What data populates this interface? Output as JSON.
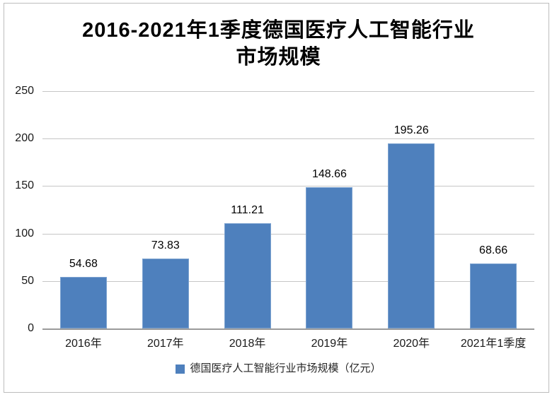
{
  "chart_data": {
    "type": "bar",
    "title": "2016-2021年1季度德国医疗人工智能行业市场规模",
    "title_lines": [
      "2016-2021年1季度德国医疗人工智能行业",
      "市场规模"
    ],
    "categories": [
      "2016年",
      "2017年",
      "2018年",
      "2019年",
      "2020年",
      "2021年1季度"
    ],
    "values": [
      54.68,
      73.83,
      111.21,
      148.66,
      195.26,
      68.66
    ],
    "value_labels": [
      "54.68",
      "73.83",
      "111.21",
      "148.66",
      "195.26",
      "68.66"
    ],
    "series_name": "德国医疗人工智能行业市场规模（亿元）",
    "y_ticks": [
      0,
      50,
      100,
      150,
      200,
      250
    ],
    "ylim": [
      0,
      250
    ],
    "xlabel": "",
    "ylabel": "",
    "grid": true,
    "legend_position": "bottom",
    "bar_color": "#4E80BD",
    "bar_border_color": "#7DA3D0",
    "gridline_color": "#C6C6C6",
    "axis_line_color": "#9A9A9A",
    "border_color": "#BDBDBD",
    "background_color": "#FFFFFF",
    "text_color": "#000000"
  }
}
